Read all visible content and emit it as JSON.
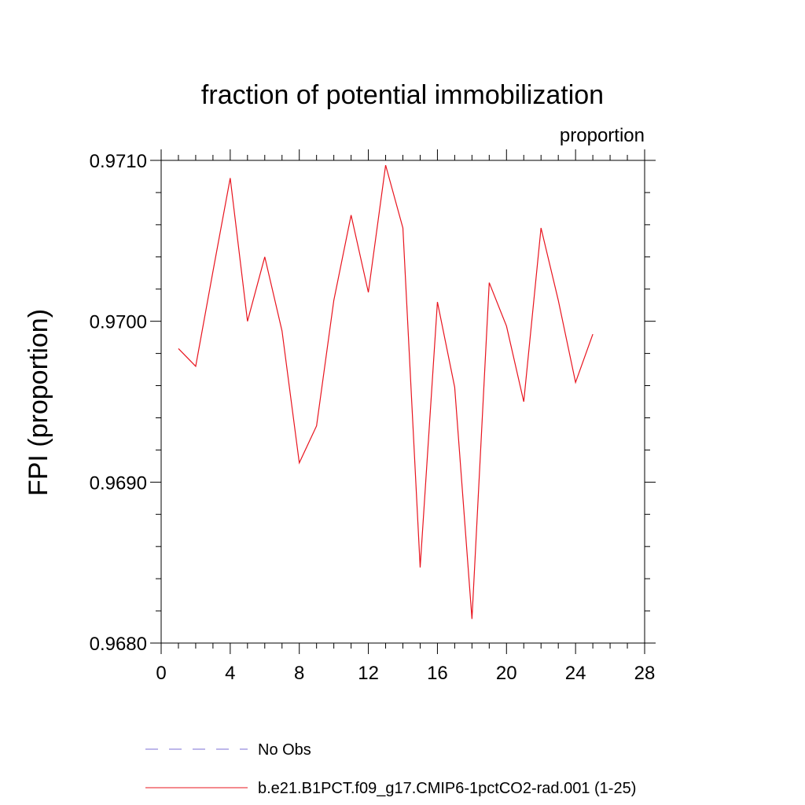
{
  "chart_data": {
    "type": "line",
    "title": "fraction of potential immobilization",
    "units_label": "proportion",
    "ylabel": "FPI  (proportion)",
    "xlabel": "",
    "xlim": [
      0,
      28
    ],
    "ylim": [
      0.968,
      0.971
    ],
    "x_ticks": [
      0,
      4,
      8,
      12,
      16,
      20,
      24,
      28
    ],
    "x_tick_labels": [
      "0",
      "4",
      "8",
      "12",
      "16",
      "20",
      "24",
      "28"
    ],
    "y_ticks": [
      0.968,
      0.969,
      0.97,
      0.971
    ],
    "y_tick_labels": [
      "0.9680",
      "0.9690",
      "0.9700",
      "0.9710"
    ],
    "y_minor_step": 0.0002,
    "x_minor_step": 1,
    "grid": false,
    "legend_position": "bottom-left",
    "series": [
      {
        "name": "b.e21.B1PCT.f09_g17.CMIP6-1pctCO2-rad.001 (1-25)",
        "color": "#e8141e",
        "dash": "solid",
        "x": [
          1,
          2,
          3,
          4,
          5,
          6,
          7,
          8,
          9,
          10,
          11,
          12,
          13,
          14,
          15,
          16,
          17,
          18,
          19,
          20,
          21,
          22,
          23,
          24,
          25
        ],
        "values": [
          0.96983,
          0.96972,
          0.97031,
          0.97089,
          0.97,
          0.9704,
          0.96994,
          0.96912,
          0.96935,
          0.97013,
          0.97066,
          0.97018,
          0.97097,
          0.97058,
          0.96847,
          0.97012,
          0.96959,
          0.96815,
          0.97024,
          0.96997,
          0.9695,
          0.97058,
          0.97013,
          0.96962,
          0.96992
        ]
      }
    ],
    "legend": [
      {
        "label": "No Obs",
        "color": "#7b6fd6",
        "dash": "dashed"
      },
      {
        "label": "b.e21.B1PCT.f09_g17.CMIP6-1pctCO2-rad.001 (1-25)",
        "color": "#e8141e",
        "dash": "solid"
      }
    ]
  }
}
